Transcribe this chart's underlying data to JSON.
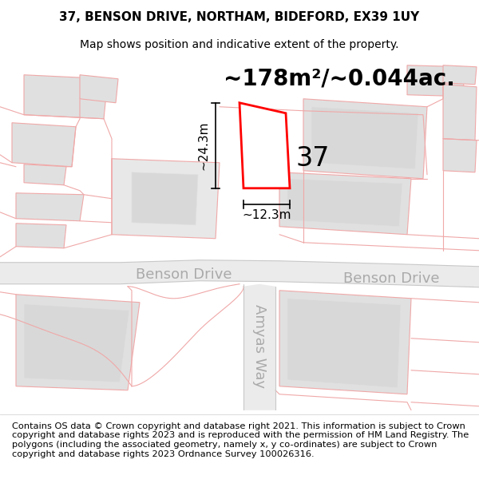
{
  "title": "37, BENSON DRIVE, NORTHAM, BIDEFORD, EX39 1UY",
  "subtitle": "Map shows position and indicative extent of the property.",
  "footer": "Contains OS data © Crown copyright and database right 2021. This information is subject to Crown copyright and database rights 2023 and is reproduced with the permission of HM Land Registry. The polygons (including the associated geometry, namely x, y co-ordinates) are subject to Crown copyright and database rights 2023 Ordnance Survey 100026316.",
  "area_label": "~178m²/~0.044ac.",
  "label_37": "37",
  "dim_vertical": "~24.3m",
  "dim_horizontal": "~12.3m",
  "road_benson": "Benson Drive",
  "road_amyas": "Amyas Way",
  "bg_color": "#ffffff",
  "map_bg": "#ffffff",
  "building_fill": "#e0e0e0",
  "road_fill": "#e8e8e8",
  "outline_pink": "#f0a8a8",
  "highlight_color": "#ff0000",
  "highlight_fill": "#ffffff",
  "road_gray": "#c8c8c8",
  "title_fontsize": 11,
  "subtitle_fontsize": 10,
  "footer_fontsize": 8.2,
  "area_label_fontsize": 20,
  "label_37_fontsize": 24,
  "dim_fontsize": 11,
  "road_label_fontsize": 13
}
